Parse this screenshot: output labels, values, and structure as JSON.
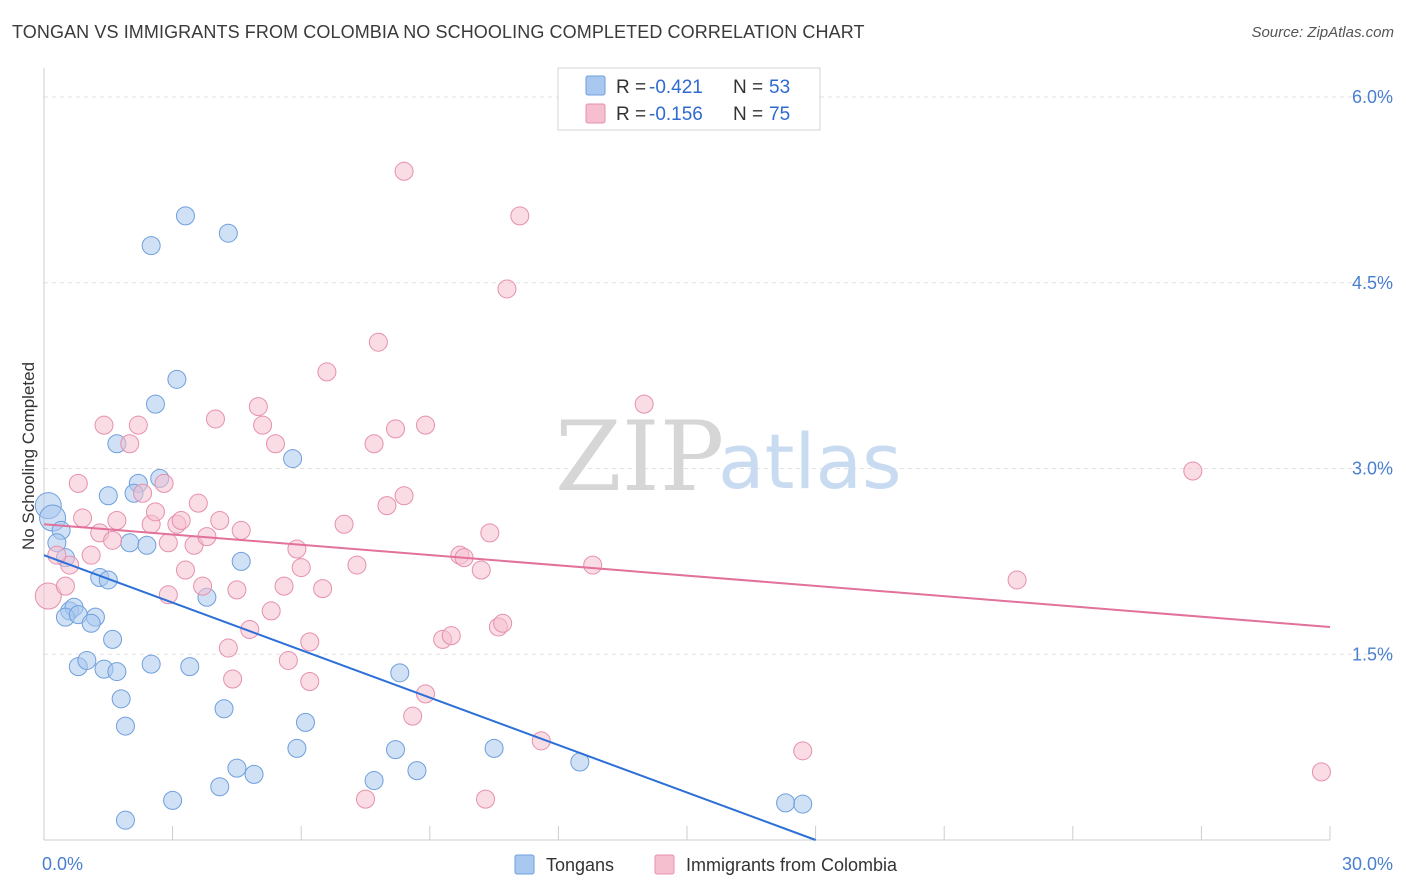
{
  "header": {
    "title": "TONGAN VS IMMIGRANTS FROM COLOMBIA NO SCHOOLING COMPLETED CORRELATION CHART",
    "source": "Source: ZipAtlas.com"
  },
  "watermark": {
    "zip": "ZIP",
    "atlas": "atlas"
  },
  "legend_box": {
    "rows": [
      {
        "r_label": "R = ",
        "r_value": "-0.421",
        "n_label": "N = ",
        "n_value": "53",
        "color": "#a9c8ef",
        "stroke": "#6f9fdc"
      },
      {
        "r_label": "R = ",
        "r_value": "-0.156",
        "n_label": "N = ",
        "n_value": "75",
        "color": "#f6bfd0",
        "stroke": "#e690ad"
      }
    ]
  },
  "bottom_legend": [
    {
      "label": "Tongans",
      "color": "#a9c8ef",
      "stroke": "#6f9fdc"
    },
    {
      "label": "Immigrants from Colombia",
      "color": "#f6bfd0",
      "stroke": "#e690ad"
    }
  ],
  "chart_data": {
    "type": "scatter",
    "title": "TONGAN VS IMMIGRANTS FROM COLOMBIA NO SCHOOLING COMPLETED CORRELATION CHART",
    "xlabel": "",
    "ylabel": "No Schooling Completed",
    "xlim": [
      0,
      30
    ],
    "ylim": [
      0,
      6.3
    ],
    "x_tick_labels": [
      {
        "value": 0,
        "label": "0.0%"
      },
      {
        "value": 30,
        "label": "30.0%"
      }
    ],
    "y_tick_labels": [
      {
        "value": 1.5,
        "label": "1.5%"
      },
      {
        "value": 3.0,
        "label": "3.0%"
      },
      {
        "value": 4.5,
        "label": "4.5%"
      },
      {
        "value": 6.0,
        "label": "6.0%"
      }
    ],
    "x_minor_ticks": [
      0,
      3,
      6,
      9,
      12,
      15,
      18,
      21,
      24,
      27,
      30
    ],
    "grid": true,
    "series": [
      {
        "name": "Tongans",
        "color": "#a9c8ef",
        "stroke": "#6f9fdc",
        "line_color": "#2c6fd6",
        "trend": {
          "x": [
            0,
            18.0
          ],
          "y": [
            2.3,
            0.0
          ]
        },
        "points": [
          [
            0.1,
            2.7
          ],
          [
            0.2,
            2.6
          ],
          [
            0.4,
            2.5
          ],
          [
            0.3,
            2.4
          ],
          [
            0.5,
            2.28
          ],
          [
            0.6,
            1.85
          ],
          [
            0.7,
            1.88
          ],
          [
            0.5,
            1.8
          ],
          [
            0.8,
            1.82
          ],
          [
            1.2,
            1.8
          ],
          [
            1.1,
            1.75
          ],
          [
            1.3,
            2.12
          ],
          [
            1.5,
            2.1
          ],
          [
            1.6,
            1.62
          ],
          [
            0.8,
            1.4
          ],
          [
            1.0,
            1.45
          ],
          [
            1.4,
            1.38
          ],
          [
            1.8,
            1.14
          ],
          [
            1.9,
            0.92
          ],
          [
            1.5,
            2.78
          ],
          [
            2.0,
            2.4
          ],
          [
            1.7,
            3.2
          ],
          [
            2.2,
            2.88
          ],
          [
            2.1,
            2.8
          ],
          [
            2.4,
            2.38
          ],
          [
            2.7,
            2.92
          ],
          [
            2.6,
            3.52
          ],
          [
            3.1,
            3.72
          ],
          [
            2.5,
            4.8
          ],
          [
            3.3,
            5.04
          ],
          [
            4.3,
            4.9
          ],
          [
            3.4,
            1.4
          ],
          [
            3.8,
            1.96
          ],
          [
            4.2,
            1.06
          ],
          [
            4.6,
            2.25
          ],
          [
            5.8,
            3.08
          ],
          [
            2.5,
            1.42
          ],
          [
            4.5,
            0.58
          ],
          [
            4.1,
            0.43
          ],
          [
            3.0,
            0.32
          ],
          [
            4.9,
            0.53
          ],
          [
            5.9,
            0.74
          ],
          [
            6.1,
            0.95
          ],
          [
            7.7,
            0.48
          ],
          [
            8.2,
            0.73
          ],
          [
            8.7,
            0.56
          ],
          [
            8.3,
            1.35
          ],
          [
            10.5,
            0.74
          ],
          [
            12.5,
            0.63
          ],
          [
            17.3,
            0.3
          ],
          [
            17.7,
            0.29
          ],
          [
            1.9,
            0.16
          ],
          [
            1.7,
            1.36
          ]
        ]
      },
      {
        "name": "Immigrants from Colombia",
        "color": "#f6bfd0",
        "stroke": "#e690ad",
        "line_color": "#e2719b",
        "trend": {
          "x": [
            0,
            30
          ],
          "y": [
            2.55,
            1.72
          ]
        },
        "points": [
          [
            0.1,
            1.97
          ],
          [
            0.5,
            2.05
          ],
          [
            0.6,
            2.22
          ],
          [
            0.3,
            2.3
          ],
          [
            1.1,
            2.3
          ],
          [
            0.8,
            2.88
          ],
          [
            1.3,
            2.48
          ],
          [
            1.6,
            2.42
          ],
          [
            1.7,
            2.58
          ],
          [
            1.4,
            3.35
          ],
          [
            2.0,
            3.2
          ],
          [
            2.2,
            3.35
          ],
          [
            2.3,
            2.8
          ],
          [
            2.5,
            2.55
          ],
          [
            2.6,
            2.65
          ],
          [
            2.8,
            2.88
          ],
          [
            2.9,
            2.4
          ],
          [
            3.1,
            2.55
          ],
          [
            3.2,
            2.58
          ],
          [
            3.3,
            2.18
          ],
          [
            3.5,
            2.38
          ],
          [
            3.7,
            2.05
          ],
          [
            3.8,
            2.45
          ],
          [
            4.0,
            3.4
          ],
          [
            4.1,
            2.58
          ],
          [
            4.3,
            1.55
          ],
          [
            4.4,
            1.3
          ],
          [
            4.5,
            2.02
          ],
          [
            4.6,
            2.5
          ],
          [
            4.8,
            1.7
          ],
          [
            5.0,
            3.5
          ],
          [
            5.1,
            3.35
          ],
          [
            5.3,
            1.85
          ],
          [
            5.4,
            3.2
          ],
          [
            5.6,
            2.05
          ],
          [
            5.7,
            1.45
          ],
          [
            5.9,
            2.35
          ],
          [
            6.0,
            2.2
          ],
          [
            6.2,
            1.28
          ],
          [
            6.5,
            2.03
          ],
          [
            6.6,
            3.78
          ],
          [
            7.0,
            2.55
          ],
          [
            7.3,
            2.22
          ],
          [
            7.5,
            0.33
          ],
          [
            7.7,
            3.2
          ],
          [
            7.8,
            4.02
          ],
          [
            8.0,
            2.7
          ],
          [
            8.2,
            3.32
          ],
          [
            8.4,
            2.78
          ],
          [
            8.6,
            1.0
          ],
          [
            8.9,
            3.35
          ],
          [
            8.9,
            1.18
          ],
          [
            8.4,
            5.4
          ],
          [
            9.3,
            1.62
          ],
          [
            9.5,
            1.65
          ],
          [
            9.7,
            2.3
          ],
          [
            9.8,
            2.28
          ],
          [
            10.2,
            2.18
          ],
          [
            10.3,
            0.33
          ],
          [
            10.4,
            2.48
          ],
          [
            10.6,
            1.72
          ],
          [
            10.7,
            1.75
          ],
          [
            10.8,
            4.45
          ],
          [
            11.1,
            5.04
          ],
          [
            11.6,
            0.8
          ],
          [
            12.8,
            2.22
          ],
          [
            14.0,
            3.52
          ],
          [
            17.7,
            0.72
          ],
          [
            22.7,
            2.1
          ],
          [
            26.8,
            2.98
          ],
          [
            29.8,
            0.55
          ],
          [
            0.9,
            2.6
          ],
          [
            2.9,
            1.98
          ],
          [
            6.2,
            1.6
          ],
          [
            3.6,
            2.72
          ]
        ]
      }
    ]
  }
}
